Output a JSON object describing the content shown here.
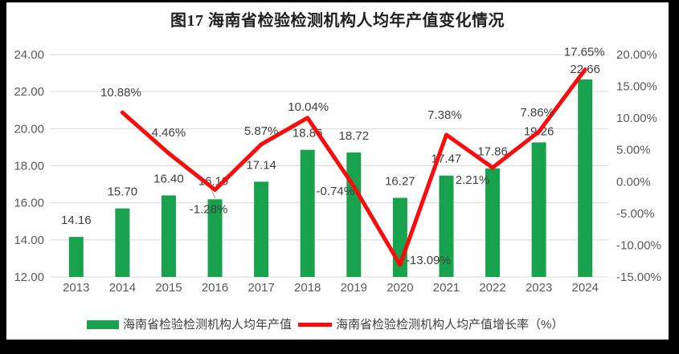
{
  "figure": {
    "title": "图17  海南省检验检测机构人均年产值变化情况"
  },
  "chart_data": {
    "type": "combo",
    "title": "图17  海南省检验检测机构人均年产值变化情况",
    "categories": [
      "2013",
      "2014",
      "2015",
      "2016",
      "2017",
      "2018",
      "2019",
      "2020",
      "2021",
      "2022",
      "2023",
      "2024"
    ],
    "series": [
      {
        "name": "海南省检验检测机构人均年产值",
        "type": "bar",
        "axis": "left",
        "values": [
          14.16,
          15.7,
          16.4,
          16.19,
          17.14,
          18.86,
          18.72,
          16.27,
          17.47,
          17.86,
          19.26,
          22.66
        ]
      },
      {
        "name": "海南省检验检测机构人均产值增长率（%）",
        "type": "line",
        "axis": "right",
        "values": [
          null,
          10.88,
          4.46,
          -1.28,
          5.87,
          10.04,
          -0.74,
          -13.09,
          7.38,
          2.21,
          7.86,
          17.65
        ]
      }
    ],
    "left_axis": {
      "min": 12,
      "max": 24,
      "step": 2,
      "tick_labels": [
        "24.00",
        "22.00",
        "20.00",
        "18.00",
        "16.00",
        "14.00",
        "12.00"
      ]
    },
    "right_axis": {
      "min": -15,
      "max": 20,
      "step": 5,
      "tick_labels": [
        "20.00%",
        "15.00%",
        "10.00%",
        "5.00%",
        "0.00%",
        "-5.00%",
        "-10.00%",
        "-15.00%"
      ]
    },
    "grid": "horizontal gridlines on primary axis",
    "legend_position": "bottom",
    "colors": {
      "bar": "#18A24E",
      "line": "#FA0C0C",
      "grid": "#D9D9D9",
      "axis_text": "#595959",
      "label_text": "#404040",
      "leader": "#A6A6A6",
      "panel_bg": "#FFFFFF",
      "page_bg": "#000000"
    }
  },
  "legend": {
    "items": [
      {
        "label": "海南省检验检测机构人均年产值",
        "swatch": "bar-green"
      },
      {
        "label": "海南省检验检测机构人均产值增长率（%）",
        "swatch": "line-red"
      }
    ]
  }
}
